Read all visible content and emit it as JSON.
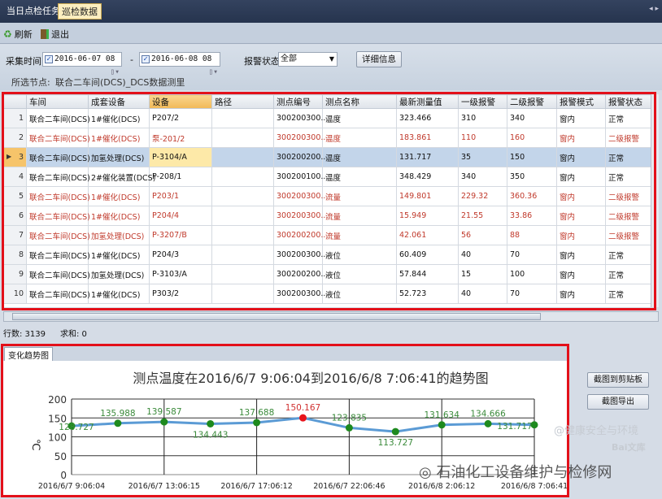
{
  "tabs": [
    {
      "label": "当日点检任务",
      "active": false
    },
    {
      "label": "巡检数据",
      "active": true
    }
  ],
  "toolbar": {
    "refresh": "刷新",
    "exit": "退出"
  },
  "filters": {
    "time_label": "采集时间",
    "date_from": "2016-06-07 08",
    "date_to": "2016-06-08 08",
    "separator": "-",
    "alarm_label": "报警状态",
    "alarm_value": "全部",
    "detail_button": "详细信息",
    "node_label": "所选节点:",
    "node_value": "联合二车间(DCS)_DCS数据测里"
  },
  "grid": {
    "columns": [
      "车间",
      "成套设备",
      "设备",
      "路径",
      "测点编号",
      "测点名称",
      "最新测量值",
      "一级报警",
      "二级报警",
      "报警模式",
      "报警状态"
    ],
    "rows": [
      {
        "n": "1",
        "alarm": false,
        "c": [
          "联合二车间(DCS)",
          "1#催化(DCS)",
          "P207/2",
          "",
          "300200300...",
          "温度",
          "323.466",
          "310",
          "340",
          "窗内",
          "正常"
        ]
      },
      {
        "n": "2",
        "alarm": true,
        "c": [
          "联合二车间(DCS)",
          "1#催化(DCS)",
          "泵-201/2",
          "",
          "300200300...",
          "温度",
          "183.861",
          "110",
          "160",
          "窗内",
          "二级报警"
        ]
      },
      {
        "n": "3",
        "alarm": false,
        "selected": true,
        "c": [
          "联合二车间(DCS)",
          "加氢处理(DCS)",
          "P-3104/A",
          "",
          "300200200...",
          "温度",
          "131.717",
          "35",
          "150",
          "窗内",
          "正常"
        ]
      },
      {
        "n": "4",
        "alarm": false,
        "c": [
          "联合二车间(DCS)",
          "2#催化装置(DCS)",
          "P-208/1",
          "",
          "300200100...",
          "温度",
          "348.429",
          "340",
          "350",
          "窗内",
          "正常"
        ]
      },
      {
        "n": "5",
        "alarm": true,
        "c": [
          "联合二车间(DCS)",
          "1#催化(DCS)",
          "P203/1",
          "",
          "300200300...",
          "流量",
          "149.801",
          "229.32",
          "360.36",
          "窗内",
          "二级报警"
        ]
      },
      {
        "n": "6",
        "alarm": true,
        "c": [
          "联合二车间(DCS)",
          "1#催化(DCS)",
          "P204/4",
          "",
          "300200300...",
          "流量",
          "15.949",
          "21.55",
          "33.86",
          "窗内",
          "二级报警"
        ]
      },
      {
        "n": "7",
        "alarm": true,
        "c": [
          "联合二车间(DCS)",
          "加氢处理(DCS)",
          "P-3207/B",
          "",
          "300200200...",
          "流量",
          "42.061",
          "56",
          "88",
          "窗内",
          "二级报警"
        ]
      },
      {
        "n": "8",
        "alarm": false,
        "c": [
          "联合二车间(DCS)",
          "1#催化(DCS)",
          "P204/3",
          "",
          "300200300...",
          "液位",
          "60.409",
          "40",
          "70",
          "窗内",
          "正常"
        ]
      },
      {
        "n": "9",
        "alarm": false,
        "c": [
          "联合二车间(DCS)",
          "加氢处理(DCS)",
          "P-3103/A",
          "",
          "300200200...",
          "液位",
          "57.844",
          "15",
          "100",
          "窗内",
          "正常"
        ]
      },
      {
        "n": "10",
        "alarm": false,
        "c": [
          "联合二车间(DCS)",
          "1#催化(DCS)",
          "P303/2",
          "",
          "300200300...",
          "液位",
          "52.723",
          "40",
          "70",
          "窗内",
          "正常"
        ]
      }
    ]
  },
  "status": {
    "rows": "行数: 3139",
    "sum": "求和: 0"
  },
  "chart_tab": "变化趋势图",
  "buttons": {
    "copy": "截图到剪贴板",
    "export": "截图导出"
  },
  "watermarks": {
    "a": "@健康安全与环境",
    "b": "Bai文库",
    "c": "石油化工设备维护与检修网"
  },
  "colors": {
    "line": "#5b9bd5",
    "point_normal": "#1e8a1e",
    "point_alarm": "#e8141c",
    "highlight": "#e3101a"
  },
  "chart_data": {
    "type": "line",
    "title": "测点温度在2016/6/7 9:06:04到2016/6/8 7:06:41的趋势图",
    "ylabel": "℃",
    "ylim": [
      0,
      200
    ],
    "yticks": [
      "0",
      "50",
      "100",
      "150",
      "200"
    ],
    "xticks": [
      "2016/6/7 9:06:04",
      "2016/6/7 13:06:15",
      "2016/6/7 17:06:12",
      "2016/6/7 22:06:46",
      "2016/6/8 2:06:12",
      "2016/6/8 7:06:41"
    ],
    "values": [
      128.727,
      135.988,
      139.587,
      134.443,
      137.688,
      150.167,
      123.835,
      113.727,
      131.634,
      134.666,
      131.717
    ],
    "alarm": [
      false,
      false,
      false,
      false,
      false,
      true,
      false,
      false,
      false,
      false,
      false
    ],
    "grid": true
  }
}
